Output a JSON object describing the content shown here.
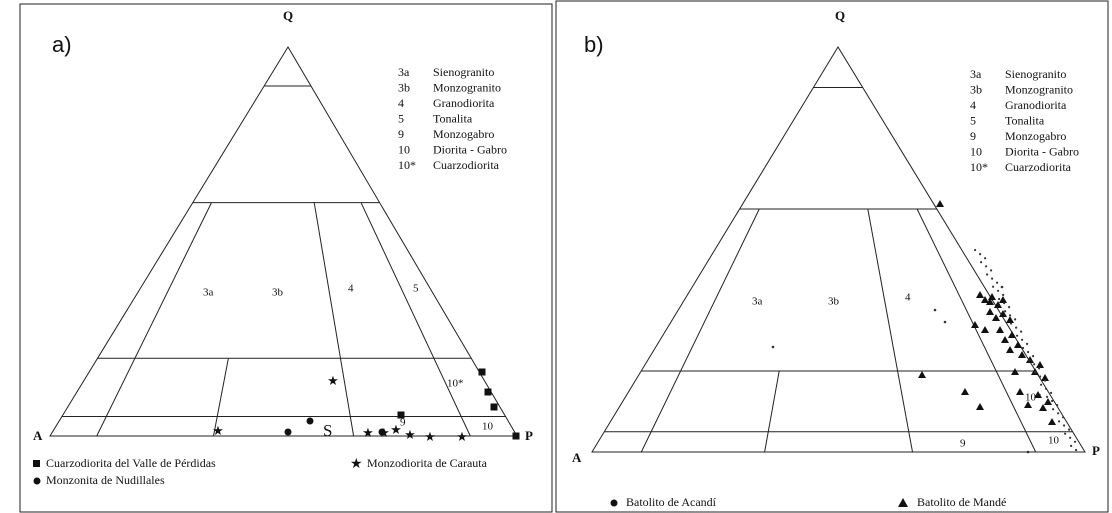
{
  "panels": [
    {
      "label": "a)",
      "apex": "Q",
      "left": "A",
      "right": "P",
      "key": [
        {
          "code": "3a",
          "name": "Sienogranito"
        },
        {
          "code": "3b",
          "name": "Monzogranito"
        },
        {
          "code": "4",
          "name": "Granodiorita"
        },
        {
          "code": "5",
          "name": "Tonalita"
        },
        {
          "code": "9",
          "name": "Monzogabro"
        },
        {
          "code": "10",
          "name": "Diorita - Gabro"
        },
        {
          "code": "10*",
          "name": "Cuarzodiorita"
        }
      ],
      "fields": [
        "3a",
        "3b",
        "4",
        "5",
        "10*",
        "9",
        "10",
        "S"
      ],
      "legend": [
        "Cuarzodiorita del Valle de Pérdidas",
        "Monzodiorita de Carauta",
        "Monzonita de Nudillales"
      ]
    },
    {
      "label": "b)",
      "apex": "Q",
      "left": "A",
      "right": "P",
      "key": [
        {
          "code": "3a",
          "name": "Sienogranito"
        },
        {
          "code": "3b",
          "name": "Monzogranito"
        },
        {
          "code": "4",
          "name": "Granodiorita"
        },
        {
          "code": "5",
          "name": "Tonalita"
        },
        {
          "code": "9",
          "name": "Monzogabro"
        },
        {
          "code": "10",
          "name": "Diorita - Gabro"
        },
        {
          "code": "10*",
          "name": "Cuarzodiorita"
        }
      ],
      "fields": [
        "3a",
        "3b",
        "4",
        "10*",
        "9",
        "10"
      ],
      "legend": [
        "Batolito de Acandí",
        "Batolito de Mandé"
      ]
    }
  ]
}
